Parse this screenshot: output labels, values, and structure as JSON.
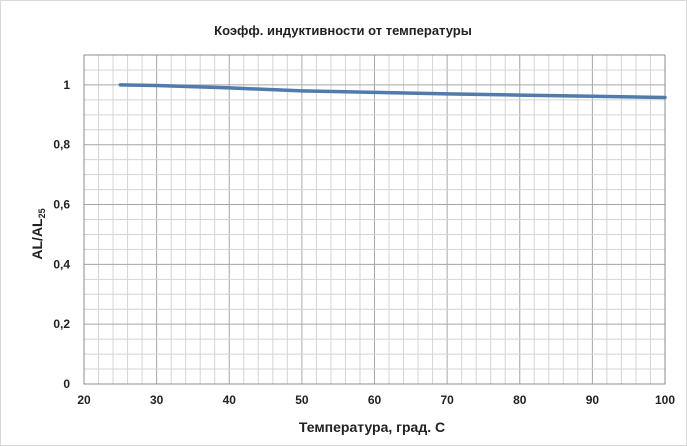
{
  "chart_data": {
    "type": "line",
    "title": "Коэфф. индуктивности от температуры",
    "xlabel": "Температура, град. С",
    "ylabel": "AL/AL",
    "ylabel_subscript": "25",
    "xlim": [
      20,
      100
    ],
    "ylim": [
      0,
      1.1
    ],
    "x_ticks": [
      20,
      30,
      40,
      50,
      60,
      70,
      80,
      90,
      100
    ],
    "x_tick_labels": [
      "20",
      "30",
      "40",
      "50",
      "60",
      "70",
      "80",
      "90",
      "100"
    ],
    "y_ticks": [
      0,
      0.2,
      0.4,
      0.6,
      0.8,
      1
    ],
    "y_tick_labels": [
      "0",
      "0,2",
      "0,4",
      "0,6",
      "0,8",
      "1"
    ],
    "x_minor_step": 2,
    "y_minor_step": 0.05,
    "grid": true,
    "series": [
      {
        "color": "#4f7cac",
        "x": [
          25,
          30,
          40,
          50,
          60,
          70,
          80,
          90,
          100
        ],
        "y": [
          1.0,
          0.998,
          0.99,
          0.98,
          0.975,
          0.97,
          0.966,
          0.962,
          0.958
        ]
      }
    ]
  }
}
